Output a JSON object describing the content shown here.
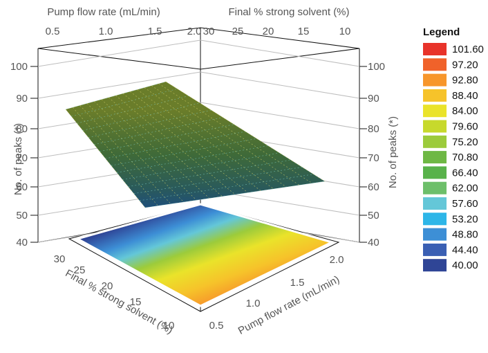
{
  "chart_data": {
    "type": "surface3d",
    "top_axes": {
      "flow_title": "Pump flow rate (mL/min)",
      "flow_ticks": [
        "0.5",
        "1.0",
        "1.5",
        "2.0"
      ],
      "solvent_title": "Final % strong solvent (%)",
      "solvent_ticks": [
        "30",
        "25",
        "20",
        "15",
        "10"
      ]
    },
    "vertical_axes": {
      "title": "No. of peaks (*)",
      "ticks": [
        "40",
        "50",
        "60",
        "70",
        "80",
        "90",
        "100"
      ]
    },
    "bottom_axes": {
      "solvent_title": "Final % strong solvent (%)",
      "solvent_ticks": [
        "30",
        "25",
        "20",
        "15",
        "10"
      ],
      "flow_title": "Pump flow rate (mL/min)",
      "flow_ticks": [
        "0.5",
        "1.0",
        "1.5",
        "2.0"
      ]
    },
    "x": {
      "name": "Pump flow rate (mL/min)",
      "range": [
        0.4,
        2.2
      ]
    },
    "y": {
      "name": "Final % strong solvent (%)",
      "range": [
        8,
        32
      ]
    },
    "z": {
      "name": "No. of peaks (*)",
      "range": [
        40,
        104
      ]
    },
    "surface_corners": [
      {
        "flow": 0.5,
        "solvent": 30,
        "peaks": 85
      },
      {
        "flow": 2.2,
        "solvent": 30,
        "peaks": 55
      },
      {
        "flow": 2.2,
        "solvent": 10,
        "peaks": 62
      },
      {
        "flow": 0.5,
        "solvent": 10,
        "peaks": 94
      }
    ],
    "legend": {
      "title": "Legend",
      "items": [
        {
          "value": "101.60",
          "color": "#e8332a"
        },
        {
          "value": "97.20",
          "color": "#f0622a"
        },
        {
          "value": "92.80",
          "color": "#f7962b"
        },
        {
          "value": "88.40",
          "color": "#f6c32a"
        },
        {
          "value": "84.00",
          "color": "#eae32a"
        },
        {
          "value": "79.60",
          "color": "#c7d92c"
        },
        {
          "value": "75.20",
          "color": "#9ccb3b"
        },
        {
          "value": "70.80",
          "color": "#6eb844"
        },
        {
          "value": "66.40",
          "color": "#58b24a"
        },
        {
          "value": "62.00",
          "color": "#6dbf6a"
        },
        {
          "value": "57.60",
          "color": "#64c7d8"
        },
        {
          "value": "53.20",
          "color": "#2db6e8"
        },
        {
          "value": "48.80",
          "color": "#3d8fd6"
        },
        {
          "value": "44.40",
          "color": "#3a5fb3"
        },
        {
          "value": "40.00",
          "color": "#2f4596"
        }
      ]
    }
  }
}
